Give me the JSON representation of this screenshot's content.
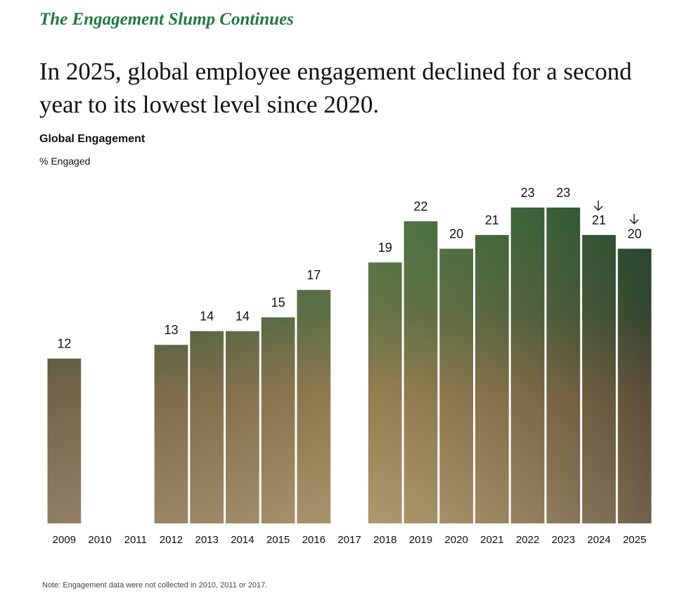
{
  "chart_data": {
    "type": "bar",
    "kicker": "The Engagement Slump Continues",
    "title": "In 2025, global employee engagement declined for a second year to its lowest level since 2020.",
    "subtitle": "Global Engagement",
    "y_label": "% Engaged",
    "categories": [
      "2009",
      "2010",
      "2011",
      "2012",
      "2013",
      "2014",
      "2015",
      "2016",
      "2017",
      "2018",
      "2019",
      "2020",
      "2021",
      "2022",
      "2023",
      "2024",
      "2025"
    ],
    "values": [
      12,
      null,
      null,
      13,
      14,
      14,
      15,
      17,
      null,
      19,
      22,
      20,
      21,
      23,
      23,
      21,
      20
    ],
    "note": "Note: Engagement data were not collected in 2010, 2011 or 2017."
  }
}
